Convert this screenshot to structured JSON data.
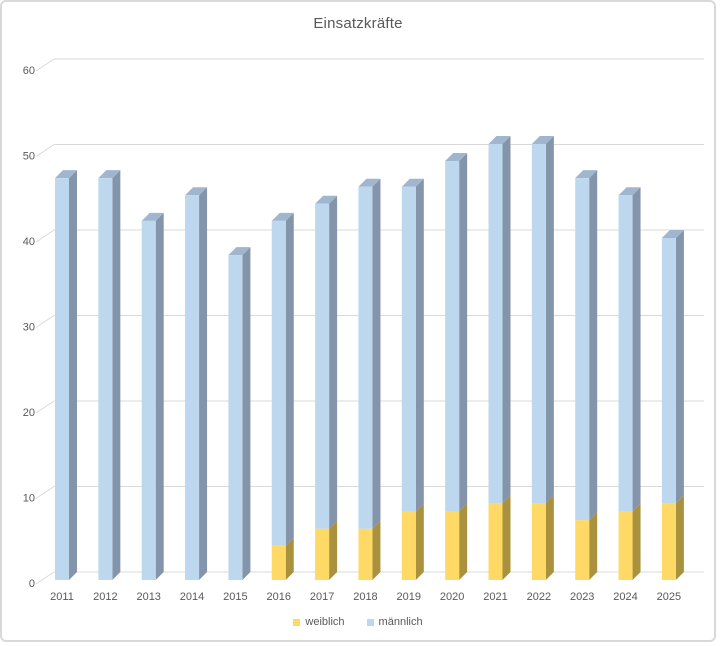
{
  "title": "Einsatzkräfte",
  "colors": {
    "background": "#ffffff",
    "frame_border": "#D9D9D9",
    "gridline": "#D9D9D9",
    "text": "#595959",
    "weiblich_front": "#FFD966",
    "weiblich_side": "#A9913D",
    "maennlich_front": "#BDD7EE",
    "maennlich_side": "#8494AA",
    "maennlich_top": "#9FB6CE"
  },
  "chart_data": {
    "type": "bar",
    "style": "3d-stacked-column",
    "title": "Einsatzkräfte",
    "xlabel": "",
    "ylabel": "",
    "ylim": [
      0,
      60
    ],
    "yticks": [
      0,
      10,
      20,
      30,
      40,
      50,
      60
    ],
    "grid": true,
    "legend_position": "bottom",
    "categories": [
      "2011",
      "2012",
      "2013",
      "2014",
      "2015",
      "2016",
      "2017",
      "2018",
      "2019",
      "2020",
      "2021",
      "2022",
      "2023",
      "2024",
      "2025"
    ],
    "series": [
      {
        "name": "weiblich",
        "color": "#FFD966",
        "side_color": "#A9913D",
        "values": [
          0,
          0,
          0,
          0,
          0,
          4,
          6,
          6,
          8,
          8,
          9,
          9,
          7,
          8,
          9
        ]
      },
      {
        "name": "männlich",
        "color": "#BDD7EE",
        "side_color": "#8494AA",
        "top_color": "#9FB6CE",
        "values": [
          47,
          47,
          42,
          45,
          38,
          38,
          38,
          40,
          38,
          41,
          42,
          42,
          40,
          37,
          31
        ]
      }
    ],
    "stacked_totals": [
      47,
      47,
      42,
      45,
      38,
      42,
      44,
      46,
      46,
      49,
      51,
      51,
      47,
      45,
      40
    ]
  },
  "legend": {
    "items": [
      {
        "label": "weiblich"
      },
      {
        "label": "männlich"
      }
    ]
  }
}
